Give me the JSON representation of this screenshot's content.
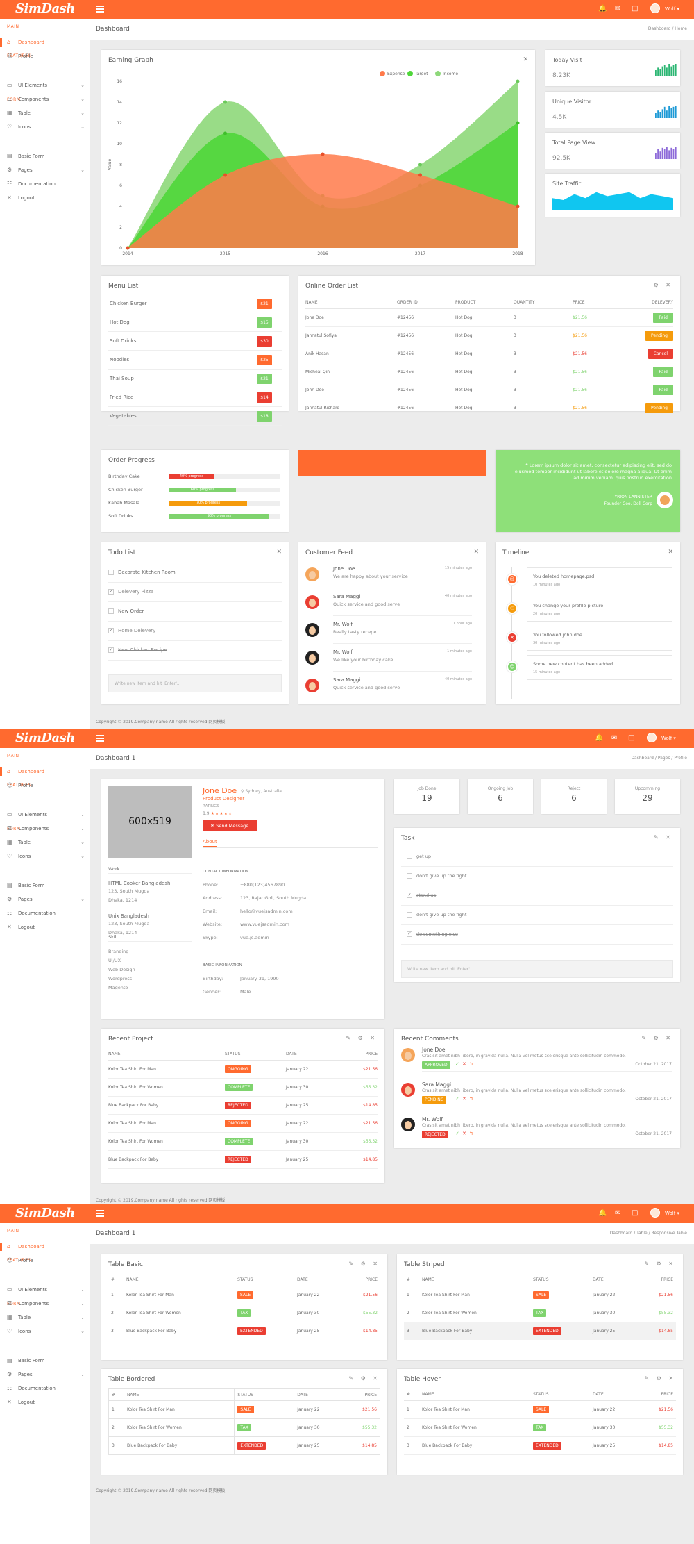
{
  "brand": {
    "logo": "SimDash"
  },
  "topbar": {
    "user": "Wolf"
  },
  "sidebar": {
    "main": "MAIN",
    "features": "FEATURES",
    "form": "FORM",
    "items": [
      {
        "label": "Dashboard",
        "icon": "home-icon"
      },
      {
        "label": "Profile",
        "icon": "user-icon"
      },
      {
        "label": "UI Elements",
        "icon": "laptop-icon"
      },
      {
        "label": "Components",
        "icon": "layers-icon"
      },
      {
        "label": "Table",
        "icon": "grid-icon"
      },
      {
        "label": "Icons",
        "icon": "heart-icon"
      },
      {
        "label": "Basic Form",
        "icon": "form-icon"
      },
      {
        "label": "Pages",
        "icon": "gear-icon"
      },
      {
        "label": "Documentation",
        "icon": "document-icon"
      },
      {
        "label": "Logout",
        "icon": "close-icon"
      }
    ]
  },
  "s1": {
    "title": "Dashboard",
    "crumb1": "Dashboard",
    "crumb2": "Home",
    "graph": {
      "title": "Earning Graph",
      "ylabel": "Value"
    },
    "stats": [
      {
        "label": "Today Visit",
        "value": "8.23K"
      },
      {
        "label": "Unique Visitor",
        "value": "4.5K"
      },
      {
        "label": "Total Page View",
        "value": "92.5K"
      },
      {
        "label": "Site Traffic",
        "value": ""
      }
    ],
    "menu": {
      "title": "Menu List",
      "items": [
        {
          "name": "Chicken Burger",
          "price": "$21",
          "color": "#ff6a2f"
        },
        {
          "name": "Hot Dog",
          "price": "$15",
          "color": "#7fd36e"
        },
        {
          "name": "Soft Drinks",
          "price": "$30",
          "color": "#ea3e32"
        },
        {
          "name": "Noodles",
          "price": "$25",
          "color": "#ff6a2f"
        },
        {
          "name": "Thai Soup",
          "price": "$21",
          "color": "#7fd36e"
        },
        {
          "name": "Fried Rice",
          "price": "$14",
          "color": "#ea3e32"
        },
        {
          "name": "Vegetables",
          "price": "$18",
          "color": "#7fd36e"
        }
      ]
    },
    "orders": {
      "title": "Online Order List",
      "headers": [
        "NAME",
        "ORDER ID",
        "PRODUCT",
        "QUANTITY",
        "PRICE",
        "DELEVERY"
      ],
      "rows": [
        {
          "name": "Jone Doe",
          "id": "#12456",
          "product": "Hot Dog",
          "qty": "3",
          "price": "$21.56",
          "status": "Paid",
          "pcolor": "#7fd36e",
          "scolor": "#7fd36e"
        },
        {
          "name": "Jannatul Sofiya",
          "id": "#12456",
          "product": "Hot Dog",
          "qty": "3",
          "price": "$21.56",
          "status": "Pending",
          "pcolor": "#f59b0c",
          "scolor": "#f59b0c"
        },
        {
          "name": "Anik Hasan",
          "id": "#12456",
          "product": "Hot Dog",
          "qty": "3",
          "price": "$21.56",
          "status": "Cancel",
          "pcolor": "#ea3e32",
          "scolor": "#ea3e32"
        },
        {
          "name": "Micheal Qin",
          "id": "#12456",
          "product": "Hot Dog",
          "qty": "3",
          "price": "$21.56",
          "status": "Paid",
          "pcolor": "#7fd36e",
          "scolor": "#7fd36e"
        },
        {
          "name": "John Doe",
          "id": "#12456",
          "product": "Hot Dog",
          "qty": "3",
          "price": "$21.56",
          "status": "Paid",
          "pcolor": "#7fd36e",
          "scolor": "#7fd36e"
        },
        {
          "name": "Jannatul Richard",
          "id": "#12456",
          "product": "Hot Dog",
          "qty": "3",
          "price": "$21.56",
          "status": "Pending",
          "pcolor": "#f59b0c",
          "scolor": "#f59b0c"
        }
      ]
    },
    "progress": {
      "title": "Order Progress",
      "items": [
        {
          "name": "Birthday Cake",
          "label": "40% progress",
          "value": 0.4,
          "color": "#ea3e32"
        },
        {
          "name": "Chicken Burger",
          "label": "60% progress",
          "value": 0.6,
          "color": "#7fd36e"
        },
        {
          "name": "Kabab Masala",
          "label": "70% progress",
          "value": 0.7,
          "color": "#f59b0c"
        },
        {
          "name": "Soft Drinks",
          "label": "90% progress",
          "value": 0.9,
          "color": "#7fd36e"
        }
      ]
    },
    "quote": {
      "text": "Lorem ipsum dolor sit amet, consectetur adipiscing elit, sed do eiusmod tempor incididunt ut labore et dolore magna aliqua. Ut enim ad minim veniam, quis nostrud exercitation",
      "author": "TYRION LANNISTER",
      "role": "Founder Ceo. Dell Corp"
    },
    "todo": {
      "title": "Todo List",
      "items": [
        {
          "text": "Decorate Kitchen Room",
          "done": false
        },
        {
          "text": "Delevery Pizza",
          "done": true
        },
        {
          "text": "New Order",
          "done": false
        },
        {
          "text": "Home Delevery",
          "done": true
        },
        {
          "text": "New Chicken Recipe",
          "done": true
        }
      ],
      "placeholder": "Write new item and hit 'Enter'..."
    },
    "feed": {
      "title": "Customer Feed",
      "items": [
        {
          "name": "Jone Doe",
          "text": "We are happy about your service",
          "time": "15 minutes ago"
        },
        {
          "name": "Sara Maggi",
          "text": "Quick service and good serve",
          "time": "40 minutes ago"
        },
        {
          "name": "Mr. Wolf",
          "text": "Really tasty recepe",
          "time": "1 hour ago"
        },
        {
          "name": "Mr. Wolf",
          "text": "We like your birthday cake",
          "time": "1 minutes ago"
        },
        {
          "name": "Sara Maggi",
          "text": "Quick service and good serve",
          "time": "40 minutes ago"
        }
      ]
    },
    "timeline": {
      "title": "Timeline",
      "items": [
        {
          "text": "You deleted homepage.psd",
          "time": "10 minutes ago",
          "color": "#ff6a2f"
        },
        {
          "text": "You change your profile picture",
          "time": "20 minutes ago",
          "color": "#f59b0c"
        },
        {
          "text": "You followed john doe",
          "time": "30 minutes ago",
          "color": "#ea3e32"
        },
        {
          "text": "Some new content has been added",
          "time": "15 minutes ago",
          "color": "#7fd36e"
        }
      ]
    },
    "footer": "Copyright © 2019.Company name All rights reserved.网页模板"
  },
  "s2": {
    "title": "Dashboard 1",
    "crumb1": "Dashboard",
    "crumb2": "Pages",
    "crumb3": "Profile",
    "profile": {
      "image": "600x519",
      "name": "Jone Doe",
      "location": "Sydney, Australia",
      "role": "Product Designer",
      "ratings_label": "RATINGS",
      "rating": "8.9",
      "send": "Send Message",
      "tab": "About",
      "work_label": "Work",
      "work": [
        {
          "title": "HTML Cooker Bangladesh",
          "l1": "123, South Mugda",
          "l2": "Dhaka, 1214"
        },
        {
          "title": "Unix Bangladesh",
          "l1": "123, South Mugda",
          "l2": "Dhaka, 1214"
        }
      ],
      "skill_label": "Skill",
      "skills": [
        "Branding",
        "UI/UX",
        "Web Design",
        "Wordpress",
        "Magento"
      ],
      "contact_label": "CONTACT INFORMATION",
      "contact": [
        {
          "k": "Phone:",
          "v": "+880(123)4567890"
        },
        {
          "k": "Address:",
          "v": "123, Rajar Goli, South Mugda"
        },
        {
          "k": "Email:",
          "v": "hello@vuejsadmin.com"
        },
        {
          "k": "Website:",
          "v": "www.vuejsadmin.com"
        },
        {
          "k": "Skype:",
          "v": "vue.js.admin"
        }
      ],
      "basic_label": "BASIC INFORMATION",
      "basic": [
        {
          "k": "Birthday:",
          "v": "January 31, 1990"
        },
        {
          "k": "Gender:",
          "v": "Male"
        }
      ]
    },
    "stats": [
      {
        "label": "Job Done",
        "value": "19"
      },
      {
        "label": "Ongoing Job",
        "value": "6"
      },
      {
        "label": "Reject",
        "value": "6"
      },
      {
        "label": "Upcomming",
        "value": "29"
      }
    ],
    "task": {
      "title": "Task",
      "items": [
        {
          "text": "get up",
          "done": false
        },
        {
          "text": "don't give up the fight",
          "done": false
        },
        {
          "text": "stand up",
          "done": true
        },
        {
          "text": "don't give up the fight",
          "done": false
        },
        {
          "text": "do something else",
          "done": true
        }
      ],
      "placeholder": "Write new item and hit 'Enter'..."
    },
    "projects": {
      "title": "Recent Project",
      "headers": [
        "NAME",
        "STATUS",
        "DATE",
        "PRICE"
      ],
      "rows": [
        {
          "name": "Kolor Tea Shirt For Man",
          "status": "ONGOING",
          "date": "January 22",
          "price": "$21.56",
          "sc": "#ff6a2f",
          "pc": "#ea3e32"
        },
        {
          "name": "Kolor Tea Shirt For Women",
          "status": "COMPLETE",
          "date": "January 30",
          "price": "$55.32",
          "sc": "#7fd36e",
          "pc": "#7fd36e"
        },
        {
          "name": "Blue Backpack For Baby",
          "status": "REJECTED",
          "date": "January 25",
          "price": "$14.85",
          "sc": "#ea3e32",
          "pc": "#ea3e32"
        },
        {
          "name": "Kolor Tea Shirt For Man",
          "status": "ONGOING",
          "date": "January 22",
          "price": "$21.56",
          "sc": "#ff6a2f",
          "pc": "#ea3e32"
        },
        {
          "name": "Kolor Tea Shirt For Women",
          "status": "COMPLETE",
          "date": "January 30",
          "price": "$55.32",
          "sc": "#7fd36e",
          "pc": "#7fd36e"
        },
        {
          "name": "Blue Backpack For Baby",
          "status": "REJECTED",
          "date": "January 25",
          "price": "$14.85",
          "sc": "#ea3e32",
          "pc": "#ea3e32"
        }
      ]
    },
    "comments": {
      "title": "Recent Comments",
      "items": [
        {
          "name": "Jone Doe",
          "text": "Cras sit amet nibh libero, in gravida nulla. Nulla vel metus scelerisque ante sollicitudin commodo.",
          "status": "APPROVED",
          "sc": "#7fd36e",
          "date": "October 21, 2017"
        },
        {
          "name": "Sara Maggi",
          "text": "Cras sit amet nibh libero, in gravida nulla. Nulla vel metus scelerisque ante sollicitudin commodo.",
          "status": "PENDING",
          "sc": "#f59b0c",
          "date": "October 21, 2017"
        },
        {
          "name": "Mr. Wolf",
          "text": "Cras sit amet nibh libero, in gravida nulla. Nulla vel metus scelerisque ante sollicitudin commodo.",
          "status": "REJECTED",
          "sc": "#ea3e32",
          "date": "October 21, 2017"
        }
      ]
    },
    "footer": "Copyright © 2019.Company name All rights reserved.网页模板"
  },
  "s3": {
    "title": "Dashboard 1",
    "crumb1": "Dashboard",
    "crumb2": "Table",
    "crumb3": "Responsive Table",
    "tables": [
      {
        "title": "Table Basic"
      },
      {
        "title": "Table Striped"
      },
      {
        "title": "Table Bordered"
      },
      {
        "title": "Table Hover"
      }
    ],
    "headers": [
      "#",
      "NAME",
      "STATUS",
      "DATE",
      "PRICE"
    ],
    "rows": [
      {
        "n": "1",
        "name": "Kolor Tea Shirt For Man",
        "status": "SALE",
        "date": "January 22",
        "price": "$21.56",
        "sc": "#ff6a2f",
        "pc": "#ea3e32"
      },
      {
        "n": "2",
        "name": "Kolor Tea Shirt For Women",
        "status": "TAX",
        "date": "January 30",
        "price": "$55.32",
        "sc": "#7fd36e",
        "pc": "#7fd36e"
      },
      {
        "n": "3",
        "name": "Blue Backpack For Baby",
        "status": "EXTENDED",
        "date": "January 25",
        "price": "$14.85",
        "sc": "#ea3e32",
        "pc": "#ea3e32"
      }
    ],
    "footer": "Copyright © 2019.Company name All rights reserved.网页模板"
  },
  "chart_data": [
    {
      "type": "area",
      "title": "Earning Graph",
      "ylabel": "Value",
      "x": [
        "2014",
        "2015",
        "2016",
        "2017",
        "2018"
      ],
      "ylim": [
        0,
        16
      ],
      "legend": [
        "Expense",
        "Target",
        "Income"
      ],
      "series": [
        {
          "name": "Expense",
          "values": [
            0,
            7,
            9,
            7,
            4
          ],
          "color": "#ff7a4a"
        },
        {
          "name": "Target",
          "values": [
            0,
            11,
            4,
            6,
            12
          ],
          "color": "#4fd63a"
        },
        {
          "name": "Income",
          "values": [
            0,
            14,
            5,
            8,
            16
          ],
          "color": "#8ed87a"
        }
      ]
    },
    {
      "type": "bar",
      "title": "Today Visit",
      "color": "#2bb673",
      "values": [
        5,
        7,
        6,
        8,
        9,
        7,
        10,
        8,
        9,
        10
      ]
    },
    {
      "type": "bar",
      "title": "Unique Visitor",
      "color": "#1e9ad6",
      "values": [
        4,
        6,
        5,
        7,
        9,
        6,
        10,
        8,
        9,
        10
      ]
    },
    {
      "type": "bar",
      "title": "Total Page View",
      "color": "#8e6bd9",
      "values": [
        5,
        8,
        6,
        9,
        8,
        10,
        7,
        9,
        8,
        10
      ]
    },
    {
      "type": "area",
      "title": "Site Traffic",
      "color": "#10c6f0",
      "values": [
        6,
        5,
        8,
        6,
        9,
        7,
        8,
        9,
        6,
        8,
        7,
        6
      ]
    }
  ]
}
